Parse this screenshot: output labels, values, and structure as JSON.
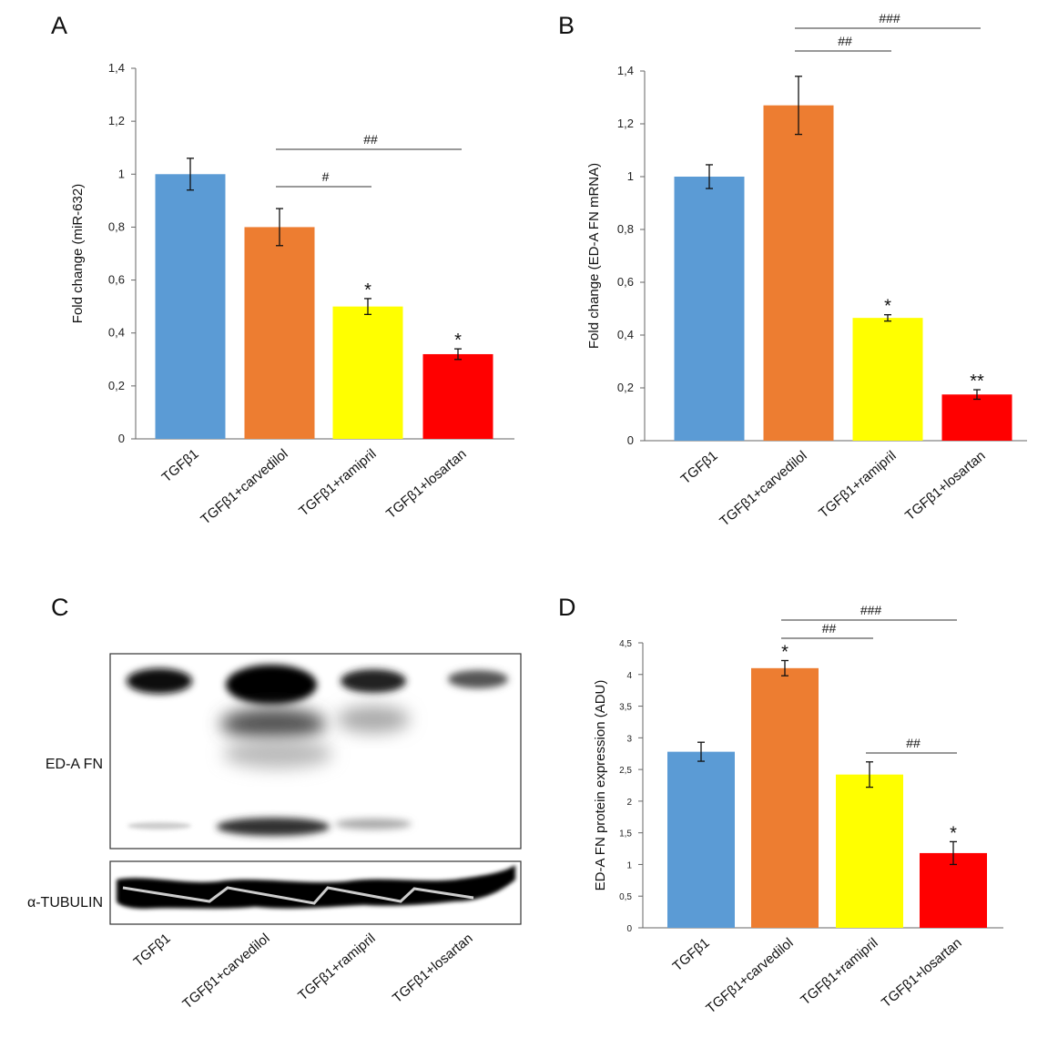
{
  "panels": {
    "A": "A",
    "B": "B",
    "C": "C",
    "D": "D"
  },
  "categories": [
    "TGFβ1",
    "TGFβ1+carvedilol",
    "TGFβ1+ramipril",
    "TGFβ1+losartan"
  ],
  "colors": {
    "TGFβ1": "#5b9bd5",
    "TGFβ1+carvedilol": "#ed7d31",
    "TGFβ1+ramipril": "#ffff00",
    "TGFβ1+losartan": "#ff0000"
  },
  "chart_data": [
    {
      "panel": "A",
      "type": "bar",
      "ylabel": "Fold change (miR-632)",
      "ylim": [
        0,
        1.4
      ],
      "yticks": [
        "0",
        "0,2",
        "0,4",
        "0,6",
        "0,8",
        "1",
        "1,2",
        "1,4"
      ],
      "categories": [
        "TGFβ1",
        "TGFβ1+carvedilol",
        "TGFβ1+ramipril",
        "TGFβ1+losartan"
      ],
      "values": [
        1.0,
        0.8,
        0.5,
        0.32
      ],
      "errors": [
        0.06,
        0.07,
        0.03,
        0.02
      ],
      "stars": [
        "",
        "",
        "*",
        "*"
      ],
      "brackets": [
        {
          "from": 1,
          "to": 2,
          "label": "#"
        },
        {
          "from": 1,
          "to": 3,
          "label": "##"
        }
      ]
    },
    {
      "panel": "B",
      "type": "bar",
      "ylabel": "Fold change (ED-A FN mRNA)",
      "ylim": [
        0,
        1.4
      ],
      "yticks": [
        "0",
        "0,2",
        "0,4",
        "0,6",
        "0,8",
        "1",
        "1,2",
        "1,4"
      ],
      "categories": [
        "TGFβ1",
        "TGFβ1+carvedilol",
        "TGFβ1+ramipril",
        "TGFβ1+losartan"
      ],
      "values": [
        1.0,
        1.27,
        0.465,
        0.175
      ],
      "errors": [
        0.045,
        0.11,
        0.012,
        0.018
      ],
      "stars": [
        "",
        "",
        "*",
        "**"
      ],
      "brackets": [
        {
          "from": 1,
          "to": 2,
          "label": "##"
        },
        {
          "from": 1,
          "to": 3,
          "label": "###"
        }
      ]
    },
    {
      "panel": "D",
      "type": "bar",
      "ylabel": "ED-A FN protein expression (ADU)",
      "ylim": [
        0,
        4.5
      ],
      "yticks": [
        "0",
        "0,5",
        "1",
        "1,5",
        "2",
        "2,5",
        "3",
        "3,5",
        "4",
        "4,5"
      ],
      "categories": [
        "TGFβ1",
        "TGFβ1+carvedilol",
        "TGFβ1+ramipril",
        "TGFβ1+losartan"
      ],
      "values": [
        2.78,
        4.1,
        2.42,
        1.18
      ],
      "errors": [
        0.15,
        0.12,
        0.2,
        0.18
      ],
      "stars": [
        "",
        "*",
        "",
        "*"
      ],
      "brackets": [
        {
          "from": 1,
          "to": 2,
          "label": "##"
        },
        {
          "from": 1,
          "to": 3,
          "label": "###"
        },
        {
          "from": 2,
          "to": 3,
          "label": "##"
        }
      ]
    }
  ],
  "blot": {
    "row1_label": "ED-A FN",
    "row2_label": "α-TUBULIN",
    "lanes": [
      "TGFβ1",
      "TGFβ1+carvedilol",
      "TGFβ1+ramipril",
      "TGFβ1+losartan"
    ]
  }
}
